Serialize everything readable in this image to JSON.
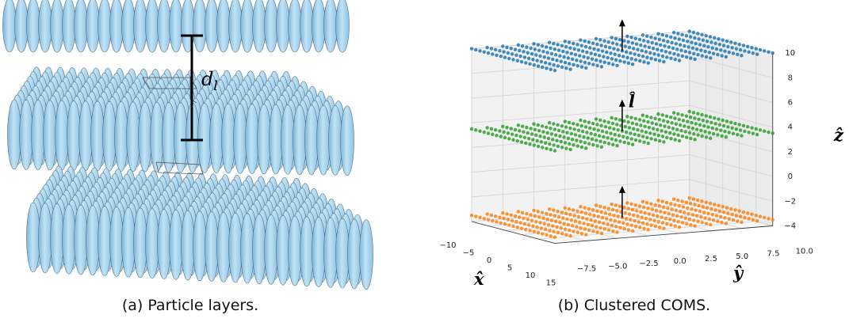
{
  "panel_a": {
    "dl_label": {
      "base": "d",
      "sub": "l"
    },
    "caption": "(a) Particle layers."
  },
  "chart_data": {
    "type": "scatter3d",
    "caption": "(b) Clustered COMS.",
    "xlabel": "x̂",
    "ylabel": "ŷ",
    "zlabel": "ẑ",
    "annotation": "l̂",
    "xlim": [
      -10,
      15
    ],
    "ylim": [
      -7.5,
      10
    ],
    "zlim": [
      -4,
      10
    ],
    "xticks": [
      {
        "value": -10,
        "label": "−10"
      },
      {
        "value": -5,
        "label": "−5"
      },
      {
        "value": 0,
        "label": "0"
      },
      {
        "value": 5,
        "label": "5"
      },
      {
        "value": 10,
        "label": "10"
      },
      {
        "value": 15,
        "label": "15"
      }
    ],
    "yticks": [
      {
        "value": -7.5,
        "label": "−7.5"
      },
      {
        "value": -5,
        "label": "−5.0"
      },
      {
        "value": -2.5,
        "label": "−2.5"
      },
      {
        "value": 0,
        "label": "0.0"
      },
      {
        "value": 2.5,
        "label": "2.5"
      },
      {
        "value": 5,
        "label": "5.0"
      },
      {
        "value": 7.5,
        "label": "7.5"
      },
      {
        "value": 10,
        "label": "10.0"
      }
    ],
    "zticks": [
      {
        "value": -4,
        "label": "−4"
      },
      {
        "value": -2,
        "label": "−2"
      },
      {
        "value": 0,
        "label": "0"
      },
      {
        "value": 2,
        "label": "2"
      },
      {
        "value": 4,
        "label": "4"
      },
      {
        "value": 6,
        "label": "6"
      },
      {
        "value": 8,
        "label": "8"
      },
      {
        "value": 10,
        "label": "10"
      }
    ],
    "series": [
      {
        "color": "#1f77b4",
        "z": 10
      },
      {
        "color": "#2ca02c",
        "z": 3.5
      },
      {
        "color": "#ff7f0e",
        "z": -3.5
      }
    ],
    "grid": true
  }
}
